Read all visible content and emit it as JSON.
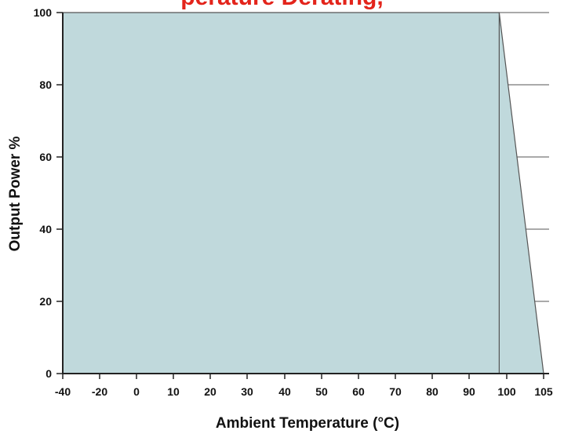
{
  "title_fragment": "perature Derating,",
  "chart_data": {
    "type": "area",
    "title": "perature Derating,",
    "xlabel": "Ambient Temperature (°C)",
    "ylabel": "Output Power %",
    "xlim": [
      -40,
      105
    ],
    "ylim": [
      0,
      100
    ],
    "xticks": [
      -40,
      -20,
      0,
      10,
      20,
      30,
      40,
      50,
      60,
      70,
      80,
      90,
      100,
      105
    ],
    "yticks": [
      0,
      20,
      40,
      60,
      80,
      100
    ],
    "grid": "horizontal",
    "reference_line_x": 98,
    "series": [
      {
        "x": [
          -40,
          98,
          105
        ],
        "y": [
          100,
          100,
          0
        ]
      }
    ],
    "colors": {
      "fill": "#c0d9dc",
      "line": "#555555",
      "grid": "#555555",
      "axis": "#222222",
      "title": "#e3241b"
    }
  }
}
